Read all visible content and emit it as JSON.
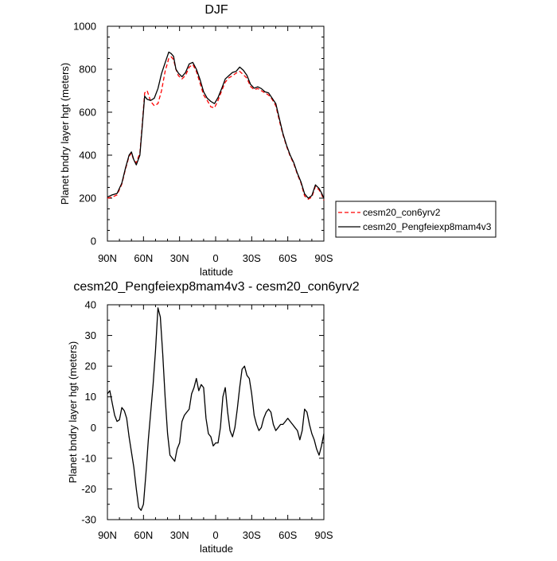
{
  "chart_data": [
    {
      "type": "line",
      "title": "DJF",
      "xlabel": "latitude",
      "ylabel": "Planet bndry layer hgt (meters)",
      "x_tick_values": [
        90,
        60,
        30,
        0,
        -30,
        -60,
        -90
      ],
      "x_tick_labels": [
        "90N",
        "60N",
        "30N",
        "0",
        "30S",
        "60S",
        "90S"
      ],
      "xlim": [
        90,
        -90
      ],
      "ylim": [
        0,
        1000
      ],
      "y_ticks": [
        "0",
        "200",
        "400",
        "600",
        "800",
        "1000"
      ],
      "y_tick_values": [
        0,
        200,
        400,
        600,
        800,
        1000
      ],
      "legend_position": "right",
      "series": [
        {
          "name": "cesm20_con6yrv2",
          "color": "#ff0000",
          "dash": "dashed",
          "x": [
            90,
            86,
            82,
            78,
            75,
            72,
            70,
            68,
            66,
            63,
            61,
            59,
            57,
            54,
            51,
            48,
            45,
            42,
            39,
            37,
            35,
            33,
            31,
            28,
            25,
            22,
            19,
            16,
            13,
            10,
            7,
            4,
            1,
            -2,
            -5,
            -8,
            -11,
            -14,
            -17,
            -20,
            -23,
            -26,
            -29,
            -32,
            -35,
            -38,
            -41,
            -44,
            -47,
            -50,
            -53,
            -56,
            -59,
            -62,
            -65,
            -68,
            -71,
            -74,
            -77,
            -80,
            -83,
            -86,
            -88,
            -90
          ],
          "y": [
            200,
            205,
            215,
            265,
            335,
            395,
            410,
            375,
            365,
            410,
            545,
            690,
            700,
            650,
            630,
            640,
            700,
            790,
            850,
            858,
            845,
            800,
            770,
            755,
            772,
            810,
            822,
            790,
            735,
            680,
            655,
            625,
            620,
            655,
            700,
            740,
            760,
            770,
            782,
            790,
            775,
            758,
            720,
            705,
            710,
            700,
            690,
            680,
            660,
            630,
            560,
            495,
            440,
            395,
            360,
            310,
            270,
            210,
            195,
            205,
            255,
            238,
            220,
            190
          ]
        },
        {
          "name": "cesm20_Pengfeiexp8mam4v3",
          "color": "#000000",
          "dash": "solid",
          "x": [
            90,
            86,
            82,
            78,
            75,
            72,
            70,
            68,
            66,
            63,
            61,
            59,
            57,
            54,
            51,
            48,
            45,
            42,
            39,
            37,
            35,
            33,
            31,
            28,
            25,
            22,
            19,
            16,
            13,
            10,
            7,
            4,
            1,
            -2,
            -5,
            -8,
            -11,
            -14,
            -17,
            -20,
            -23,
            -26,
            -29,
            -32,
            -35,
            -38,
            -41,
            -44,
            -47,
            -50,
            -53,
            -56,
            -59,
            -62,
            -65,
            -68,
            -71,
            -74,
            -77,
            -80,
            -83,
            -86,
            -88,
            -90
          ],
          "y": [
            205,
            215,
            222,
            270,
            340,
            400,
            415,
            378,
            355,
            400,
            535,
            675,
            660,
            655,
            665,
            710,
            780,
            830,
            880,
            873,
            860,
            800,
            782,
            765,
            785,
            825,
            832,
            800,
            752,
            695,
            665,
            650,
            640,
            668,
            710,
            755,
            770,
            785,
            790,
            810,
            795,
            772,
            730,
            712,
            718,
            710,
            695,
            690,
            665,
            640,
            570,
            500,
            445,
            400,
            365,
            315,
            275,
            220,
            200,
            212,
            262,
            245,
            225,
            200
          ]
        }
      ]
    },
    {
      "type": "line",
      "title": "cesm20_Pengfeiexp8mam4v3 - cesm20_con6yrv2",
      "xlabel": "latitude",
      "ylabel": "Planet bndry layer hgt (meters)",
      "x_tick_values": [
        90,
        60,
        30,
        0,
        -30,
        -60,
        -90
      ],
      "x_tick_labels": [
        "90N",
        "60N",
        "30N",
        "0",
        "30S",
        "60S",
        "90S"
      ],
      "xlim": [
        90,
        -90
      ],
      "ylim": [
        -30,
        40
      ],
      "y_ticks": [
        "-30",
        "-20",
        "-10",
        "0",
        "10",
        "20",
        "30",
        "40"
      ],
      "y_tick_values": [
        -30,
        -20,
        -10,
        0,
        10,
        20,
        30,
        40
      ],
      "series": [
        {
          "name": "",
          "color": "#000000",
          "dash": "solid",
          "x": [
            90,
            88,
            86,
            84,
            82,
            80,
            78,
            76,
            74,
            72,
            70,
            68,
            66,
            64,
            62,
            60,
            58,
            56,
            54,
            52,
            50,
            48,
            46,
            44,
            42,
            40,
            38,
            36,
            34,
            32,
            30,
            28,
            26,
            24,
            22,
            20,
            18,
            16,
            14,
            12,
            10,
            8,
            6,
            4,
            2,
            0,
            -2,
            -4,
            -6,
            -8,
            -10,
            -12,
            -14,
            -16,
            -18,
            -20,
            -22,
            -24,
            -26,
            -28,
            -30,
            -32,
            -34,
            -36,
            -38,
            -40,
            -42,
            -44,
            -46,
            -48,
            -50,
            -52,
            -54,
            -56,
            -58,
            -60,
            -62,
            -64,
            -66,
            -68,
            -70,
            -72,
            -74,
            -76,
            -78,
            -80,
            -82,
            -84,
            -86,
            -88,
            -90
          ],
          "y": [
            11,
            12,
            8,
            4,
            2,
            2.5,
            6.5,
            5.5,
            3,
            -3,
            -8,
            -13,
            -20,
            -26,
            -27,
            -25,
            -15,
            -4,
            5,
            14,
            25,
            39,
            36,
            24,
            10,
            -2,
            -9,
            -10,
            -11,
            -7,
            -5,
            2,
            4,
            5,
            6,
            11,
            13,
            16,
            12,
            14,
            13,
            3,
            -2,
            -3,
            -6,
            -5,
            -5,
            0,
            10,
            13,
            5,
            -1,
            -3,
            0,
            6,
            13,
            19,
            20,
            17,
            16,
            11,
            4,
            1,
            -1,
            0,
            3,
            5,
            6,
            5,
            1,
            -1,
            0,
            1,
            1,
            2,
            3,
            2,
            1,
            0,
            -1,
            -4,
            -1,
            6,
            5,
            1,
            -2,
            -4,
            -7,
            -9,
            -6,
            -2
          ]
        }
      ]
    }
  ]
}
